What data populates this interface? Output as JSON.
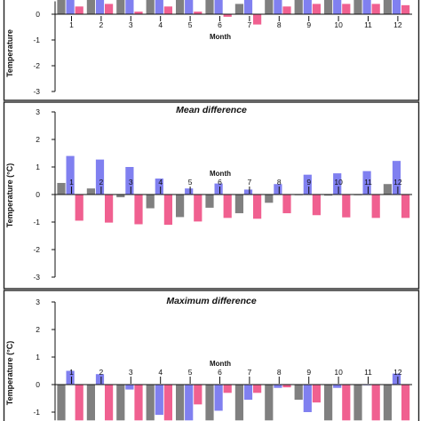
{
  "chart_data": [
    {
      "type": "bar",
      "title": "",
      "xlabel": "Month",
      "ylabel": "Temperature",
      "ylim": [
        -3,
        0.5
      ],
      "yticks": [
        0,
        -1,
        -2,
        -3
      ],
      "categories": [
        "1",
        "2",
        "3",
        "4",
        "5",
        "6",
        "7",
        "8",
        "9",
        "10",
        "11",
        "12"
      ],
      "series": [
        {
          "values": [
            0.8,
            0.8,
            0.8,
            0.8,
            0.8,
            0.8,
            0.4,
            0.8,
            0.8,
            0.8,
            0.8,
            0.8
          ],
          "color": "#808080"
        },
        {
          "values": [
            0.8,
            0.8,
            0.8,
            0.8,
            0.8,
            0.8,
            0.8,
            0.8,
            0.8,
            0.8,
            0.8,
            0.8
          ],
          "color": "#8080f0"
        },
        {
          "values": [
            0.3,
            0.4,
            0.1,
            0.3,
            0.1,
            -0.1,
            -0.4,
            0.3,
            0.4,
            0.4,
            0.4,
            0.35
          ],
          "color": "#f06090"
        }
      ]
    },
    {
      "type": "bar",
      "title": "Mean  difference",
      "xlabel": "Month",
      "ylabel": "Temperature (°C)",
      "ylim": [
        -3,
        3
      ],
      "yticks": [
        3,
        2,
        1,
        0,
        -1,
        -2,
        -3
      ],
      "categories": [
        "1",
        "2",
        "3",
        "4",
        "5",
        "6",
        "7",
        "8",
        "9",
        "10",
        "11",
        "12"
      ],
      "series": [
        {
          "values": [
            0.42,
            0.22,
            -0.1,
            -0.5,
            -0.82,
            -0.48,
            -0.68,
            -0.3,
            -0.02,
            -0.04,
            -0.02,
            0.38
          ],
          "color": "#808080"
        },
        {
          "values": [
            1.4,
            1.27,
            1.0,
            0.58,
            0.22,
            0.4,
            0.18,
            0.38,
            0.72,
            0.77,
            0.85,
            1.22
          ],
          "color": "#8080f0"
        },
        {
          "values": [
            -0.95,
            -1.02,
            -1.08,
            -1.1,
            -0.98,
            -0.85,
            -0.88,
            -0.68,
            -0.75,
            -0.83,
            -0.85,
            -0.85
          ],
          "color": "#f06090"
        }
      ]
    },
    {
      "type": "bar",
      "title": "Maximum  difference",
      "xlabel": "Month",
      "ylabel": "Temperature (°C)",
      "ylim": [
        -1.3,
        3
      ],
      "yticks": [
        3,
        2,
        1,
        0,
        -1
      ],
      "categories": [
        "1",
        "2",
        "3",
        "4",
        "5",
        "6",
        "7",
        "8",
        "9",
        "10",
        "11",
        "12"
      ],
      "series": [
        {
          "values": [
            -1.3,
            -1.3,
            -1.3,
            -1.3,
            -1.3,
            -1.3,
            -1.3,
            -1.3,
            -0.55,
            -1.3,
            -1.3,
            -1.3
          ],
          "color": "#808080"
        },
        {
          "values": [
            0.5,
            0.38,
            -0.18,
            -1.1,
            -1.3,
            -0.95,
            -0.55,
            -0.12,
            -1.0,
            -0.12,
            -0.02,
            0.4
          ],
          "color": "#8080f0"
        },
        {
          "values": [
            -1.3,
            -1.3,
            -1.3,
            -1.3,
            -0.72,
            -0.3,
            -0.3,
            -0.1,
            -0.65,
            -1.3,
            -1.3,
            -1.3
          ],
          "color": "#f06090"
        }
      ]
    }
  ]
}
